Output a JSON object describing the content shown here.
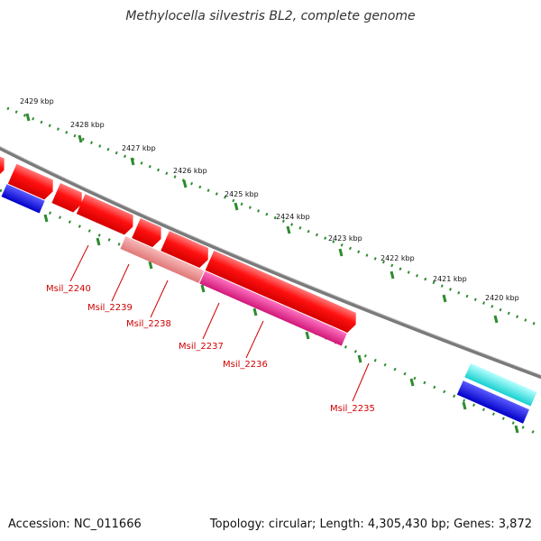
{
  "title": "Methylocella silvestris BL2, complete genome",
  "footer": {
    "accession": "Accession: NC_011666",
    "summary": "Topology: circular; Length: 4,305,430 bp; Genes: 3,872"
  },
  "colors": {
    "backbone": "#808080",
    "ruler_dots": "#2e8b2e",
    "forward_cds": "#ff1a1a",
    "gene_label": "#d00000",
    "gray_gene": "#c4c4c4",
    "blue_gene": "#1010e0",
    "cyan_gene": "#22dddd",
    "pink_light": "#f09090",
    "pink_magenta": "#e82a90"
  },
  "ruler": {
    "ticks": [
      "2429 kbp",
      "2428 kbp",
      "2427 kbp",
      "2426 kbp",
      "2425 kbp",
      "2424 kbp",
      "2423 kbp",
      "2422 kbp",
      "2421 kbp",
      "2420 kbp"
    ]
  },
  "gene_labels": [
    "Msil_2240",
    "Msil_2239",
    "Msil_2238",
    "Msil_2237",
    "Msil_2236",
    "Msil_2235"
  ]
}
